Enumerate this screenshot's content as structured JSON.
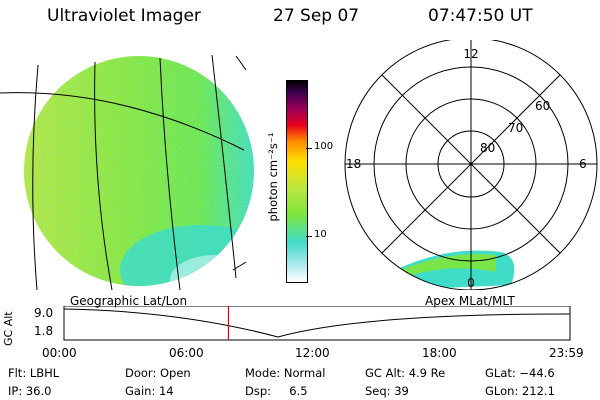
{
  "header": {
    "instrument": "Ultraviolet Imager",
    "date": "27 Sep 07",
    "time": "07:47:50 UT"
  },
  "colorbar": {
    "unit_label": "photon cm⁻²s⁻¹",
    "tick_100": "100",
    "tick_10": "10"
  },
  "polar": {
    "mlt_12": "12",
    "mlt_18": "18",
    "mlt_6": "6",
    "mlt_0": "0",
    "lat_60": "60",
    "lat_70": "70",
    "lat_80": "80"
  },
  "timeline": {
    "ylabel": "GC Alt",
    "y_top": "9.0",
    "y_bottom": "1.8",
    "left_title": "Geographic Lat/Lon",
    "right_title": "Apex MLat/MLT",
    "ticks": [
      "00:00",
      "06:00",
      "12:00",
      "18:00",
      "23:59"
    ],
    "current_time_hours": 7.8
  },
  "footer": {
    "flt": "Flt: LBHL",
    "ip": "IP: 36.0",
    "door": "Door: Open",
    "gain": "Gain: 14",
    "mode": "Mode: Normal",
    "dsp": "Dsp:     6.5",
    "gcalt": "GC Alt: 4.9 Re",
    "seq": "Seq: 39",
    "glat": "GLat: −44.6",
    "glon": "GLon: 212.1"
  },
  "colors": {
    "green": "#7fe63a",
    "yellowgreen": "#b8e640",
    "cyan": "#3fdcc8",
    "marker": "#e00000"
  }
}
